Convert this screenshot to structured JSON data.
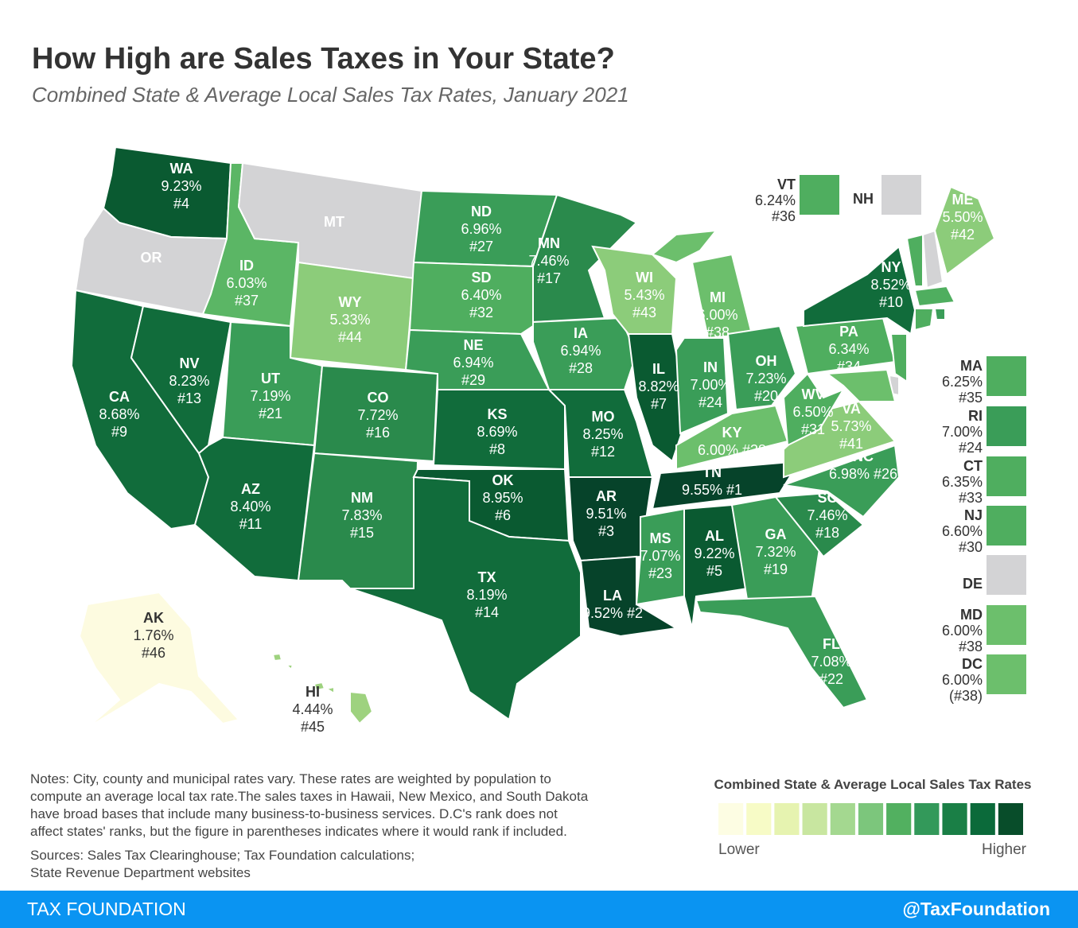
{
  "header": {
    "title": "How High are Sales Taxes in Your State?",
    "subtitle": "Combined State & Average Local Sales Tax Rates, January 2021"
  },
  "states": [
    {
      "abbr": "WA",
      "rate": "9.23%",
      "rank": "#4",
      "color": "#0a5a31"
    },
    {
      "abbr": "OR",
      "color": "#d3d3d5"
    },
    {
      "abbr": "CA",
      "rate": "8.68%",
      "rank": "#9",
      "color": "#116c3b"
    },
    {
      "abbr": "NV",
      "rate": "8.23%",
      "rank": "#13",
      "color": "#116c3b"
    },
    {
      "abbr": "ID",
      "rate": "6.03%",
      "rank": "#37",
      "color": "#5bb665"
    },
    {
      "abbr": "MT",
      "color": "#d3d3d5"
    },
    {
      "abbr": "WY",
      "rate": "5.33%",
      "rank": "#44",
      "color": "#8ccc7a"
    },
    {
      "abbr": "UT",
      "rate": "7.19%",
      "rank": "#21",
      "color": "#3a9d58"
    },
    {
      "abbr": "CO",
      "rate": "7.72%",
      "rank": "#16",
      "color": "#2a8a4c"
    },
    {
      "abbr": "AZ",
      "rate": "8.40%",
      "rank": "#11",
      "color": "#116c3b"
    },
    {
      "abbr": "NM",
      "rate": "7.83%",
      "rank": "#15",
      "color": "#2a8a4c"
    },
    {
      "abbr": "ND",
      "rate": "6.96%",
      "rank": "#27",
      "color": "#3a9d58"
    },
    {
      "abbr": "SD",
      "rate": "6.40%",
      "rank": "#32",
      "color": "#4fae5f"
    },
    {
      "abbr": "NE",
      "rate": "6.94%",
      "rank": "#29",
      "color": "#3a9d58"
    },
    {
      "abbr": "KS",
      "rate": "8.69%",
      "rank": "#8",
      "color": "#116c3b"
    },
    {
      "abbr": "OK",
      "rate": "8.95%",
      "rank": "#6",
      "color": "#0a5a31"
    },
    {
      "abbr": "TX",
      "rate": "8.19%",
      "rank": "#14",
      "color": "#116c3b"
    },
    {
      "abbr": "MN",
      "rate": "7.46%",
      "rank": "#17",
      "color": "#2a8a4c"
    },
    {
      "abbr": "IA",
      "rate": "6.94%",
      "rank": "#28",
      "color": "#3a9d58"
    },
    {
      "abbr": "MO",
      "rate": "8.25%",
      "rank": "#12",
      "color": "#116c3b"
    },
    {
      "abbr": "AR",
      "rate": "9.51%",
      "rank": "#3",
      "color": "#06432a"
    },
    {
      "abbr": "LA",
      "rate": "9.52%",
      "rank": "#2",
      "color": "#06432a"
    },
    {
      "abbr": "WI",
      "rate": "5.43%",
      "rank": "#43",
      "color": "#8ccc7a"
    },
    {
      "abbr": "IL",
      "rate": "8.82%",
      "rank": "#7",
      "color": "#0a5a31"
    },
    {
      "abbr": "MI",
      "rate": "6.00%",
      "rank": "#38",
      "color": "#6cbf6c"
    },
    {
      "abbr": "IN",
      "rate": "7.00%",
      "rank": "#24",
      "color": "#3a9d58"
    },
    {
      "abbr": "OH",
      "rate": "7.23%",
      "rank": "#20",
      "color": "#3a9d58"
    },
    {
      "abbr": "KY",
      "rate": "6.00%",
      "rank": "#38",
      "color": "#6cbf6c"
    },
    {
      "abbr": "TN",
      "rate": "9.55%",
      "rank": "#1",
      "color": "#06432a"
    },
    {
      "abbr": "MS",
      "rate": "7.07%",
      "rank": "#23",
      "color": "#3a9d58"
    },
    {
      "abbr": "AL",
      "rate": "9.22%",
      "rank": "#5",
      "color": "#0a5a31"
    },
    {
      "abbr": "GA",
      "rate": "7.32%",
      "rank": "#19",
      "color": "#3a9d58"
    },
    {
      "abbr": "FL",
      "rate": "7.08%",
      "rank": "#22",
      "color": "#3a9d58"
    },
    {
      "abbr": "SC",
      "rate": "7.46%",
      "rank": "#18",
      "color": "#2a8a4c"
    },
    {
      "abbr": "NC",
      "rate": "6.98%",
      "rank": "#26",
      "color": "#3a9d58"
    },
    {
      "abbr": "VA",
      "rate": "5.73%",
      "rank": "#41",
      "color": "#8ccc7a"
    },
    {
      "abbr": "WV",
      "rate": "6.50%",
      "rank": "#31",
      "color": "#4fae5f"
    },
    {
      "abbr": "PA",
      "rate": "6.34%",
      "rank": "#34",
      "color": "#4fae5f"
    },
    {
      "abbr": "NY",
      "rate": "8.52%",
      "rank": "#10",
      "color": "#116c3b"
    },
    {
      "abbr": "ME",
      "rate": "5.50%",
      "rank": "#42",
      "color": "#8ccc7a"
    },
    {
      "abbr": "VT",
      "rate": "6.24%",
      "rank": "#36",
      "color": "#4fae5f"
    },
    {
      "abbr": "NH",
      "color": "#d3d3d5"
    },
    {
      "abbr": "MA",
      "rate": "6.25%",
      "rank": "#35",
      "color": "#4fae5f"
    },
    {
      "abbr": "RI",
      "rate": "7.00%",
      "rank": "#24",
      "color": "#3a9d58"
    },
    {
      "abbr": "CT",
      "rate": "6.35%",
      "rank": "#33",
      "color": "#4fae5f"
    },
    {
      "abbr": "NJ",
      "rate": "6.60%",
      "rank": "#30",
      "color": "#4fae5f"
    },
    {
      "abbr": "DE",
      "color": "#d3d3d5"
    },
    {
      "abbr": "MD",
      "rate": "6.00%",
      "rank": "#38",
      "color": "#6cbf6c"
    },
    {
      "abbr": "DC",
      "rate": "6.00%",
      "rank": "(#38)",
      "color": "#6cbf6c"
    },
    {
      "abbr": "AK",
      "rate": "1.76%",
      "rank": "#46",
      "color": "#fdfbe0"
    },
    {
      "abbr": "HI",
      "rate": "4.44%",
      "rank": "#45",
      "color": "#9ed27f"
    }
  ],
  "notes": [
    "Notes: City, county and municipal rates vary. These rates are weighted by population to",
    "compute an average local tax rate.The sales taxes in Hawaii, New Mexico, and South Dakota",
    "have broad bases that include many business-to-business services. D.C's rank does not",
    "affect states' ranks, but the figure in parentheses indicates where it would rank if included."
  ],
  "sources": [
    "Sources: Sales Tax Clearinghouse; Tax Foundation calculations;",
    "State Revenue Department websites"
  ],
  "legend": {
    "title": "Combined State & Average Local Sales Tax Rates",
    "colors": [
      "#fdfde3",
      "#f7fbc6",
      "#e6f3b0",
      "#c8e6a0",
      "#a4d890",
      "#7cc67c",
      "#52b060",
      "#33995a",
      "#1a7f46",
      "#0b6a3a",
      "#084d2a"
    ],
    "low": "Lower",
    "high": "Higher"
  },
  "footer": {
    "left": "TAX FOUNDATION",
    "right": "@TaxFoundation"
  }
}
